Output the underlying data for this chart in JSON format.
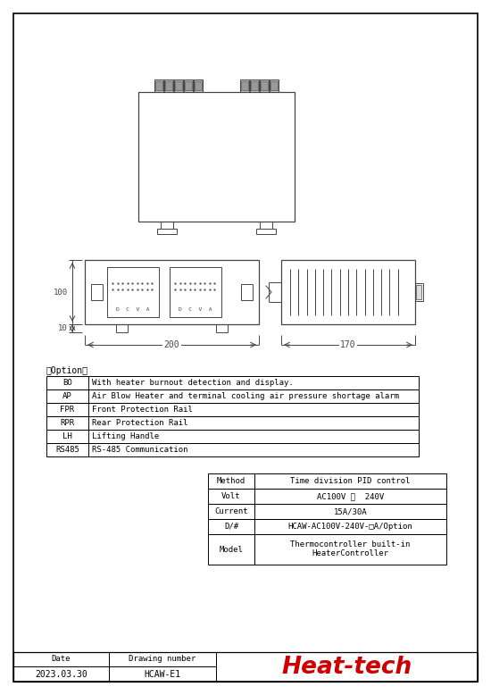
{
  "border_color": "#000000",
  "line_color": "#444444",
  "bg_color": "#ffffff",
  "option_header": "［Option］",
  "options": [
    [
      "BO",
      "With heater burnout detection and display."
    ],
    [
      "AP",
      "Air Blow Heater and terminal cooling air pressure shortage alarm"
    ],
    [
      "FPR",
      "Front Protection Rail"
    ],
    [
      "RPR",
      "Rear Protection Rail"
    ],
    [
      "LH",
      "Lifting Handle"
    ],
    [
      "RS485",
      "RS-485 Communication"
    ]
  ],
  "spec_rows": [
    [
      "Method",
      "Time division PID control"
    ],
    [
      "Volt",
      "AC100V ～  240V"
    ],
    [
      "Current",
      "15A/30A"
    ],
    [
      "D/#",
      "HCAW-AC100V-240V-□A/Option"
    ],
    [
      "Model",
      "Thermocontroller built-in\nHeaterController"
    ]
  ],
  "footer_date_label": "Date",
  "footer_drawing_label": "Drawing number",
  "footer_date": "2023.03.30",
  "footer_drawing": "HCAW-E1",
  "footer_brand": "Heat-tech",
  "footer_brand_color": "#cc0000",
  "dim_200": "200",
  "dim_170": "170",
  "dim_100": "100",
  "dim_10": "10"
}
